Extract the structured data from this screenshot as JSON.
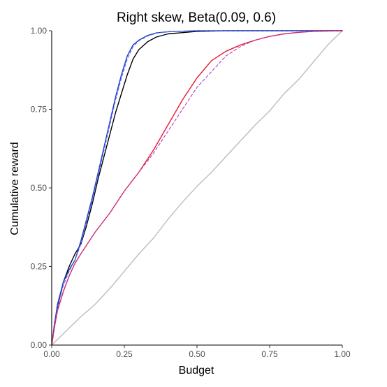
{
  "chart_data": {
    "type": "line",
    "title": "Right skew, Beta(0.09, 0.6)",
    "xlabel": "Budget",
    "ylabel": "Cumulative reward",
    "xlim": [
      0,
      1
    ],
    "ylim": [
      0,
      1
    ],
    "x_ticks": [
      "0.00",
      "0.25",
      "0.50",
      "0.75",
      "1.00"
    ],
    "y_ticks": [
      "0.00",
      "0.25",
      "0.50",
      "0.75",
      "1.00"
    ],
    "grid": false,
    "legend": "none",
    "series": [
      {
        "color": "#bdbdbd",
        "dash": "solid",
        "points": [
          [
            0,
            0
          ],
          [
            0.05,
            0.045
          ],
          [
            0.1,
            0.09
          ],
          [
            0.15,
            0.13
          ],
          [
            0.2,
            0.18
          ],
          [
            0.25,
            0.235
          ],
          [
            0.3,
            0.29
          ],
          [
            0.35,
            0.34
          ],
          [
            0.4,
            0.4
          ],
          [
            0.45,
            0.455
          ],
          [
            0.5,
            0.505
          ],
          [
            0.55,
            0.55
          ],
          [
            0.6,
            0.6
          ],
          [
            0.65,
            0.65
          ],
          [
            0.7,
            0.7
          ],
          [
            0.75,
            0.745
          ],
          [
            0.8,
            0.8
          ],
          [
            0.85,
            0.845
          ],
          [
            0.9,
            0.9
          ],
          [
            0.95,
            0.955
          ],
          [
            1.0,
            1.0
          ]
        ]
      },
      {
        "color": "#000000",
        "dash": "solid",
        "points": [
          [
            0,
            0
          ],
          [
            0.01,
            0.07
          ],
          [
            0.02,
            0.12
          ],
          [
            0.04,
            0.2
          ],
          [
            0.06,
            0.25
          ],
          [
            0.08,
            0.29
          ],
          [
            0.1,
            0.32
          ],
          [
            0.12,
            0.38
          ],
          [
            0.14,
            0.45
          ],
          [
            0.16,
            0.53
          ],
          [
            0.18,
            0.6
          ],
          [
            0.2,
            0.67
          ],
          [
            0.22,
            0.74
          ],
          [
            0.24,
            0.8
          ],
          [
            0.26,
            0.86
          ],
          [
            0.28,
            0.91
          ],
          [
            0.3,
            0.94
          ],
          [
            0.33,
            0.965
          ],
          [
            0.36,
            0.98
          ],
          [
            0.4,
            0.99
          ],
          [
            0.5,
            0.998
          ],
          [
            0.6,
            1.0
          ],
          [
            1.0,
            1.0
          ]
        ]
      },
      {
        "color": "#1f3fd6",
        "dash": "solid",
        "points": [
          [
            0,
            0
          ],
          [
            0.01,
            0.07
          ],
          [
            0.02,
            0.13
          ],
          [
            0.04,
            0.2
          ],
          [
            0.06,
            0.24
          ],
          [
            0.08,
            0.27
          ],
          [
            0.1,
            0.33
          ],
          [
            0.12,
            0.4
          ],
          [
            0.14,
            0.47
          ],
          [
            0.16,
            0.55
          ],
          [
            0.18,
            0.63
          ],
          [
            0.2,
            0.71
          ],
          [
            0.22,
            0.79
          ],
          [
            0.24,
            0.86
          ],
          [
            0.26,
            0.92
          ],
          [
            0.28,
            0.955
          ],
          [
            0.3,
            0.97
          ],
          [
            0.33,
            0.985
          ],
          [
            0.36,
            0.993
          ],
          [
            0.4,
            0.997
          ],
          [
            0.5,
            1.0
          ],
          [
            1.0,
            1.0
          ]
        ]
      },
      {
        "color": "#5a6bd8",
        "dash": "dashed",
        "points": [
          [
            0,
            0
          ],
          [
            0.01,
            0.065
          ],
          [
            0.02,
            0.12
          ],
          [
            0.04,
            0.19
          ],
          [
            0.06,
            0.235
          ],
          [
            0.08,
            0.27
          ],
          [
            0.1,
            0.32
          ],
          [
            0.12,
            0.39
          ],
          [
            0.14,
            0.46
          ],
          [
            0.16,
            0.54
          ],
          [
            0.18,
            0.62
          ],
          [
            0.2,
            0.7
          ],
          [
            0.22,
            0.78
          ],
          [
            0.24,
            0.85
          ],
          [
            0.26,
            0.91
          ],
          [
            0.28,
            0.95
          ],
          [
            0.3,
            0.968
          ],
          [
            0.33,
            0.983
          ],
          [
            0.36,
            0.992
          ],
          [
            0.4,
            0.997
          ],
          [
            0.5,
            1.0
          ],
          [
            1.0,
            1.0
          ]
        ]
      },
      {
        "color": "#e8192c",
        "dash": "solid",
        "points": [
          [
            0,
            0
          ],
          [
            0.01,
            0.06
          ],
          [
            0.02,
            0.11
          ],
          [
            0.04,
            0.17
          ],
          [
            0.06,
            0.22
          ],
          [
            0.08,
            0.26
          ],
          [
            0.1,
            0.29
          ],
          [
            0.15,
            0.36
          ],
          [
            0.2,
            0.42
          ],
          [
            0.25,
            0.49
          ],
          [
            0.3,
            0.55
          ],
          [
            0.35,
            0.62
          ],
          [
            0.4,
            0.7
          ],
          [
            0.45,
            0.78
          ],
          [
            0.5,
            0.85
          ],
          [
            0.55,
            0.905
          ],
          [
            0.6,
            0.935
          ],
          [
            0.65,
            0.955
          ],
          [
            0.7,
            0.97
          ],
          [
            0.75,
            0.982
          ],
          [
            0.8,
            0.99
          ],
          [
            0.85,
            0.995
          ],
          [
            0.9,
            0.998
          ],
          [
            1.0,
            1.0
          ]
        ]
      },
      {
        "color": "#b23fbf",
        "dash": "dashed",
        "points": [
          [
            0,
            0
          ],
          [
            0.01,
            0.06
          ],
          [
            0.02,
            0.11
          ],
          [
            0.04,
            0.17
          ],
          [
            0.06,
            0.22
          ],
          [
            0.08,
            0.26
          ],
          [
            0.1,
            0.29
          ],
          [
            0.15,
            0.36
          ],
          [
            0.2,
            0.42
          ],
          [
            0.25,
            0.49
          ],
          [
            0.3,
            0.55
          ],
          [
            0.35,
            0.61
          ],
          [
            0.4,
            0.68
          ],
          [
            0.45,
            0.75
          ],
          [
            0.5,
            0.82
          ],
          [
            0.55,
            0.87
          ],
          [
            0.6,
            0.92
          ],
          [
            0.65,
            0.95
          ],
          [
            0.7,
            0.97
          ],
          [
            0.75,
            0.982
          ],
          [
            0.8,
            0.99
          ],
          [
            0.85,
            0.995
          ],
          [
            0.9,
            0.998
          ],
          [
            1.0,
            1.0
          ]
        ]
      }
    ]
  }
}
